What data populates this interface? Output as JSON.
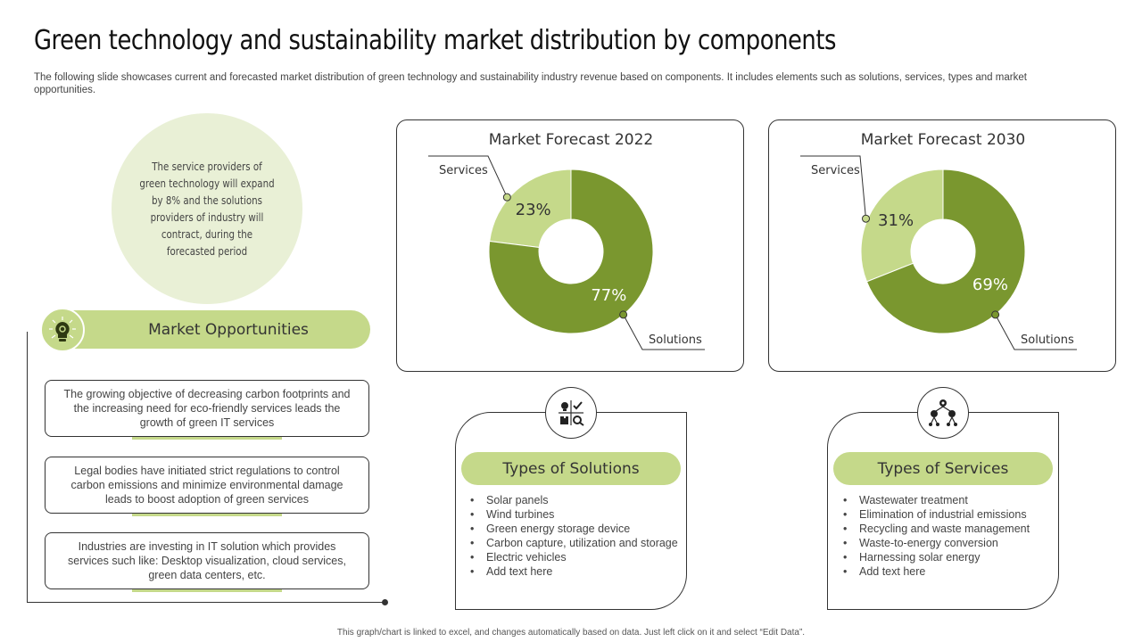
{
  "header": {
    "title": "Green technology and sustainability market distribution by components",
    "subtitle": "The following slide showcases current and forecasted market distribution of green technology and sustainability industry revenue based on components. It includes elements such as solutions, services, types and market opportunities."
  },
  "note": {
    "text": "The service providers of green technology will expand by 8% and the solutions providers of industry will contract, during the forecasted period"
  },
  "opportunities": {
    "title": "Market Opportunities",
    "icon": "lightbulb-gear-icon",
    "items": [
      "The growing objective of decreasing carbon footprints and the increasing need for eco-friendly services leads the growth of green IT services",
      "Legal bodies have initiated strict regulations to control carbon emissions and minimize environmental damage leads to boost adoption of green services",
      "Industries are investing in IT solution which provides services such like: Desktop visualization, cloud services, green data centers, etc."
    ]
  },
  "chart_data": [
    {
      "type": "pie",
      "title": "Market Forecast 2022",
      "categories": [
        "Services",
        "Solutions"
      ],
      "values": [
        23,
        77
      ],
      "value_labels": [
        "23%",
        "77%"
      ],
      "colors": [
        "#c5d98a",
        "#7a972f"
      ],
      "donut": true
    },
    {
      "type": "pie",
      "title": "Market Forecast 2030",
      "categories": [
        "Services",
        "Solutions"
      ],
      "values": [
        31,
        69
      ],
      "value_labels": [
        "31%",
        "69%"
      ],
      "colors": [
        "#c5d98a",
        "#7a972f"
      ],
      "donut": true
    }
  ],
  "solutions": {
    "title": "Types of Solutions",
    "icon": "solutions-checklist-icon",
    "items": [
      "Solar panels",
      "Wind turbines",
      "Green energy storage device",
      "Carbon capture, utilization and storage",
      "Electric vehicles",
      "Add text here"
    ]
  },
  "services": {
    "title": "Types of Services",
    "icon": "services-network-icon",
    "items": [
      "Wastewater treatment",
      "Elimination of industrial emissions",
      "Recycling and waste management",
      "Waste-to-energy conversion",
      "Harnessing solar energy",
      "Add text here"
    ]
  },
  "footer": {
    "text": "This graph/chart is linked to excel, and changes automatically based on data. Just left click on it and select “Edit Data”."
  }
}
